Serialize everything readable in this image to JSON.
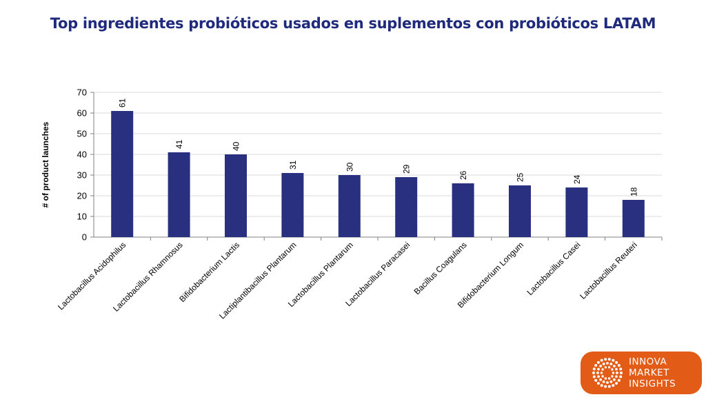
{
  "title": "Top ingredientes probióticos usados en suplementos con probióticos LATAM",
  "colors": {
    "title": "#1f2a7c",
    "bar": "#28307f",
    "grid": "#d9d9d9",
    "axis": "#808080",
    "logo_bg": "#e25c17"
  },
  "chart_data": {
    "type": "bar",
    "categories": [
      "Lactobacillus Acidophilus",
      "Lactobacillus Rhamnosus",
      "Bifidobacterium Lactis",
      "Lactiplantibacillus Plantarum",
      "Lactobacillus Plantarum",
      "Lactobacillus Paracasei",
      "Bacillus Coagulans",
      "Bifidobacterium Longum",
      "Lactobacillus Casei",
      "Lactobacillus Reuteri"
    ],
    "values": [
      61,
      41,
      40,
      31,
      30,
      29,
      26,
      25,
      24,
      18
    ],
    "ylabel": "# of product launches",
    "ylim": [
      0,
      70
    ],
    "yticks": [
      0,
      10,
      20,
      30,
      40,
      50,
      60,
      70
    ],
    "grid": true,
    "data_labels": true
  },
  "logo": {
    "lines": [
      "INNOVA",
      "MARKET",
      "INSIGHTS"
    ],
    "icon": "dotted-sunburst-icon"
  }
}
